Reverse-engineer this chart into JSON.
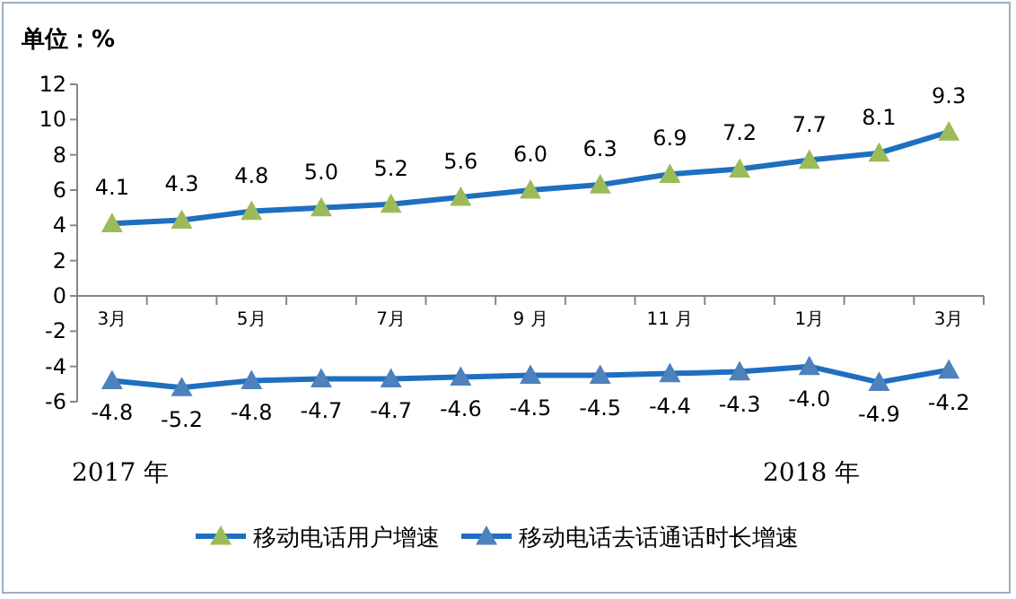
{
  "chart_data": {
    "type": "line",
    "categories": [
      "3月",
      null,
      "5月",
      null,
      "7月",
      null,
      "9 月",
      null,
      "11 月",
      null,
      "1月",
      null,
      "3月"
    ],
    "series": [
      {
        "name": "移动电话用户增速",
        "color": "#1f6fc0",
        "colors": [
          "#9bbb59",
          "#9bbb59",
          "#9bbb59",
          "#9bbb59",
          "#9bbb59",
          "#9bbb59",
          "#9bbb59",
          "#9bbb59",
          "#9bbb59",
          "#9bbb59",
          "#9bbb59",
          "#9bbb59",
          "#9bbb59"
        ],
        "values": [
          4.1,
          4.3,
          4.8,
          5.0,
          5.2,
          5.6,
          6.0,
          6.3,
          6.9,
          7.2,
          7.7,
          8.1,
          9.3
        ],
        "value_labels": [
          "4.1",
          "4.3",
          "4.8",
          "5.0",
          "5.2",
          "5.6",
          "6.0",
          "6.3",
          "6.9",
          "7.2",
          "7.7",
          "8.1",
          "9.3"
        ]
      },
      {
        "name": "移动电话去话通话时长增速",
        "color": "#1f6fc0",
        "colors": [
          "#4f81bd",
          "#4f81bd",
          "#4f81bd",
          "#4f81bd",
          "#4f81bd",
          "#4f81bd",
          "#4f81bd",
          "#4f81bd",
          "#4f81bd",
          "#4f81bd",
          "#4f81bd",
          "#4f81bd",
          "#4f81bd"
        ],
        "values": [
          -4.8,
          -5.2,
          -4.8,
          -4.7,
          -4.7,
          -4.6,
          -4.5,
          -4.5,
          -4.4,
          -4.3,
          -4.0,
          -4.9,
          -4.2
        ],
        "value_labels": [
          "-4.8",
          "-5.2",
          "-4.8",
          "-4.7",
          "-4.7",
          "-4.6",
          "-4.5",
          "-4.5",
          "-4.4",
          "-4.3",
          "-4.0",
          "-4.9",
          "-4.2"
        ]
      }
    ],
    "ylim": [
      -6,
      12
    ],
    "yticks": [
      -6,
      -4,
      -2,
      0,
      2,
      4,
      6,
      8,
      10,
      12
    ],
    "marker": "triangle",
    "legend": "bottom",
    "grid": false,
    "annotations": [
      "单位：%",
      "2017 年",
      "2018 年"
    ]
  }
}
